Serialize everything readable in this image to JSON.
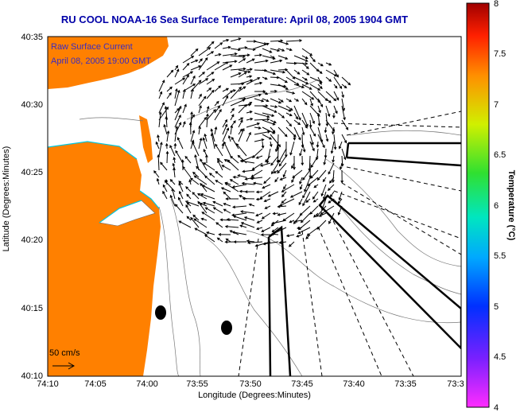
{
  "header": {
    "title": "RU COOL  NOAA-16  Sea Surface Temperature:  April 08, 2005 1904 GMT"
  },
  "legend": {
    "line1": "Raw Surface Current",
    "line2": "April 08, 2005 19:00 GMT",
    "scale_label": "50 cm/s"
  },
  "axes": {
    "ylabel": "Latitude (Degrees:Minutes)",
    "xlabel": "Longitude (Degrees:Minutes)",
    "yticks": [
      "40:35",
      "40:30",
      "40:25",
      "40:20",
      "40:15",
      "40:10"
    ],
    "xticks": [
      "74:10",
      "74:05",
      "74:00",
      "73:55",
      "73:50",
      "73:45",
      "73:40",
      "73:35",
      "73:3"
    ]
  },
  "colorbar": {
    "label": "Temperature (°C)",
    "ticks": [
      "8",
      "7.5",
      "7",
      "6.5",
      "6",
      "5.5",
      "5",
      "4.5",
      "4"
    ]
  },
  "colors": {
    "land": "#ff8000",
    "title": "#0000a8",
    "legend_text": "#3a2cc0"
  }
}
